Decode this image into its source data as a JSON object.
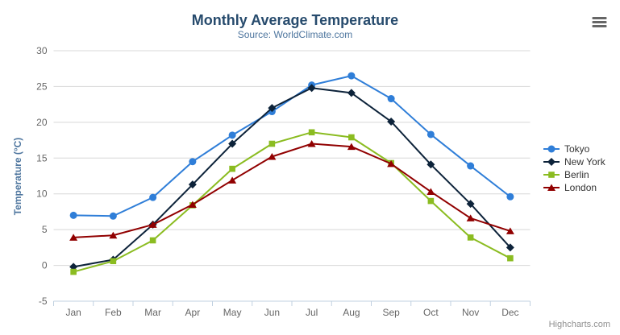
{
  "header": {
    "title": "Monthly Average Temperature",
    "subtitle": "Source: WorldClimate.com"
  },
  "icons": {
    "context_menu": "hamburger"
  },
  "credits": {
    "text": "Highcharts.com"
  },
  "chart_data": {
    "type": "line",
    "title": "Monthly Average Temperature",
    "subtitle": "Source: WorldClimate.com",
    "xlabel": "",
    "ylabel": "Temperature (°C)",
    "ylim": [
      -5,
      30
    ],
    "ytick_step": 5,
    "grid": "horizontal",
    "legend_position": "right",
    "categories": [
      "Jan",
      "Feb",
      "Mar",
      "Apr",
      "May",
      "Jun",
      "Jul",
      "Aug",
      "Sep",
      "Oct",
      "Nov",
      "Dec"
    ],
    "series": [
      {
        "name": "Tokyo",
        "color": "#2f7ed8",
        "marker": "circle",
        "values": [
          7.0,
          6.9,
          9.5,
          14.5,
          18.2,
          21.5,
          25.2,
          26.5,
          23.3,
          18.3,
          13.9,
          9.6
        ]
      },
      {
        "name": "New York",
        "color": "#0d233a",
        "marker": "diamond",
        "values": [
          -0.2,
          0.8,
          5.7,
          11.3,
          17.0,
          22.0,
          24.8,
          24.1,
          20.1,
          14.1,
          8.6,
          2.5
        ]
      },
      {
        "name": "Berlin",
        "color": "#8bbc21",
        "marker": "square",
        "values": [
          -0.9,
          0.6,
          3.5,
          8.4,
          13.5,
          17.0,
          18.6,
          17.9,
          14.3,
          9.0,
          3.9,
          1.0
        ]
      },
      {
        "name": "London",
        "color": "#910000",
        "marker": "triangle",
        "values": [
          3.9,
          4.2,
          5.7,
          8.5,
          11.9,
          15.2,
          17.0,
          16.6,
          14.2,
          10.3,
          6.6,
          4.8
        ]
      }
    ],
    "colors": {
      "grid": "#d8d8d8",
      "axis_line": "#c0d0e0",
      "tick_label": "#666666",
      "title": "#274b6d",
      "subtitle": "#4d759e",
      "axis_title": "#4d759e",
      "legend_text": "#333333",
      "credits": "#909090",
      "menu_icon": "#666666"
    }
  }
}
